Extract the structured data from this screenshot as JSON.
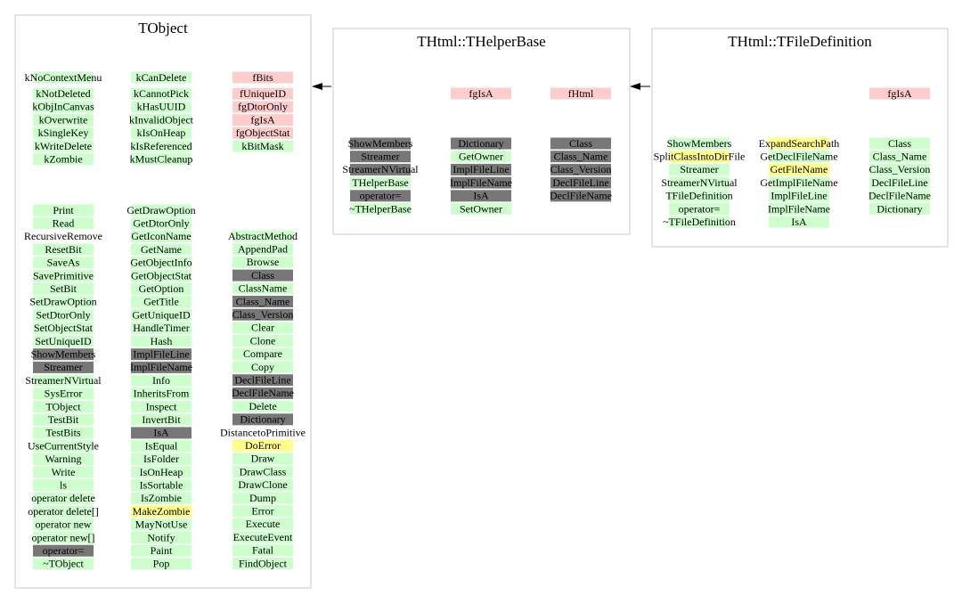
{
  "boxes": [
    {
      "title": "TObject",
      "sections": [
        {
          "columns": [
            [
              {
                "text": "kNoContextMenu",
                "kind": "green"
              },
              {
                "text": "kNotDeleted",
                "kind": "green"
              },
              {
                "text": "kObjInCanvas",
                "kind": "green"
              },
              {
                "text": "kOverwrite",
                "kind": "green"
              },
              {
                "text": "kSingleKey",
                "kind": "green"
              },
              {
                "text": "kWriteDelete",
                "kind": "green"
              },
              {
                "text": "kZombie",
                "kind": "green"
              }
            ],
            [
              {
                "text": "kCanDelete",
                "kind": "green"
              },
              {
                "text": "kCannotPick",
                "kind": "green"
              },
              {
                "text": "kHasUUID",
                "kind": "green"
              },
              {
                "text": "kInvalidObject",
                "kind": "green"
              },
              {
                "text": "kIsOnHeap",
                "kind": "green"
              },
              {
                "text": "kIsReferenced",
                "kind": "green"
              },
              {
                "text": "kMustCleanup",
                "kind": "green"
              }
            ],
            [
              {
                "text": "fBits",
                "kind": "pink"
              },
              {
                "text": "fUniqueID",
                "kind": "pink"
              },
              {
                "text": "fgDtorOnly",
                "kind": "pink"
              },
              {
                "text": "fgIsA",
                "kind": "pink"
              },
              {
                "text": "fgObjectStat",
                "kind": "pink"
              },
              {
                "text": "kBitMask",
                "kind": "green"
              }
            ]
          ]
        },
        {
          "columns": [
            [
              {
                "text": "Print",
                "kind": "green"
              },
              {
                "text": "Read",
                "kind": "green"
              },
              {
                "text": "RecursiveRemove",
                "kind": "none"
              },
              {
                "text": "ResetBit",
                "kind": "green"
              },
              {
                "text": "SaveAs",
                "kind": "green"
              },
              {
                "text": "SavePrimitive",
                "kind": "green"
              },
              {
                "text": "SetBit",
                "kind": "green"
              },
              {
                "text": "SetDrawOption",
                "kind": "green"
              },
              {
                "text": "SetDtorOnly",
                "kind": "green"
              },
              {
                "text": "SetObjectStat",
                "kind": "green"
              },
              {
                "text": "SetUniqueID",
                "kind": "green"
              },
              {
                "text": "ShowMembers",
                "kind": "gray"
              },
              {
                "text": "Streamer",
                "kind": "gray"
              },
              {
                "text": "StreamerNVirtual",
                "kind": "green"
              },
              {
                "text": "SysError",
                "kind": "green"
              },
              {
                "text": "TObject",
                "kind": "green"
              },
              {
                "text": "TestBit",
                "kind": "green"
              },
              {
                "text": "TestBits",
                "kind": "green"
              },
              {
                "text": "UseCurrentStyle",
                "kind": "green"
              },
              {
                "text": "Warning",
                "kind": "green"
              },
              {
                "text": "Write",
                "kind": "green"
              },
              {
                "text": "ls",
                "kind": "green"
              },
              {
                "text": "operator delete",
                "kind": "green"
              },
              {
                "text": "operator delete[]",
                "kind": "green"
              },
              {
                "text": "operator new",
                "kind": "green"
              },
              {
                "text": "operator new[]",
                "kind": "green"
              },
              {
                "text": "operator=",
                "kind": "gray"
              },
              {
                "text": "~TObject",
                "kind": "green"
              }
            ],
            [
              {
                "text": "GetDrawOption",
                "kind": "green"
              },
              {
                "text": "GetDtorOnly",
                "kind": "green"
              },
              {
                "text": "GetIconName",
                "kind": "green"
              },
              {
                "text": "GetName",
                "kind": "green"
              },
              {
                "text": "GetObjectInfo",
                "kind": "green"
              },
              {
                "text": "GetObjectStat",
                "kind": "green"
              },
              {
                "text": "GetOption",
                "kind": "green"
              },
              {
                "text": "GetTitle",
                "kind": "green"
              },
              {
                "text": "GetUniqueID",
                "kind": "green"
              },
              {
                "text": "HandleTimer",
                "kind": "green"
              },
              {
                "text": "Hash",
                "kind": "green"
              },
              {
                "text": "ImplFileLine",
                "kind": "gray"
              },
              {
                "text": "ImplFileName",
                "kind": "gray"
              },
              {
                "text": "Info",
                "kind": "green"
              },
              {
                "text": "InheritsFrom",
                "kind": "green"
              },
              {
                "text": "Inspect",
                "kind": "green"
              },
              {
                "text": "InvertBit",
                "kind": "green"
              },
              {
                "text": "IsA",
                "kind": "gray"
              },
              {
                "text": "IsEqual",
                "kind": "green"
              },
              {
                "text": "IsFolder",
                "kind": "green"
              },
              {
                "text": "IsOnHeap",
                "kind": "green"
              },
              {
                "text": "IsSortable",
                "kind": "green"
              },
              {
                "text": "IsZombie",
                "kind": "green"
              },
              {
                "text": "MakeZombie",
                "kind": "yellow"
              },
              {
                "text": "MayNotUse",
                "kind": "green"
              },
              {
                "text": "Notify",
                "kind": "green"
              },
              {
                "text": "Paint",
                "kind": "green"
              },
              {
                "text": "Pop",
                "kind": "green"
              }
            ],
            [
              {
                "text": "AbstractMethod",
                "kind": "green"
              },
              {
                "text": "AppendPad",
                "kind": "green"
              },
              {
                "text": "Browse",
                "kind": "green"
              },
              {
                "text": "Class",
                "kind": "gray"
              },
              {
                "text": "ClassName",
                "kind": "green"
              },
              {
                "text": "Class_Name",
                "kind": "gray"
              },
              {
                "text": "Class_Version",
                "kind": "gray"
              },
              {
                "text": "Clear",
                "kind": "green"
              },
              {
                "text": "Clone",
                "kind": "green"
              },
              {
                "text": "Compare",
                "kind": "green"
              },
              {
                "text": "Copy",
                "kind": "green"
              },
              {
                "text": "DeclFileLine",
                "kind": "gray"
              },
              {
                "text": "DeclFileName",
                "kind": "gray"
              },
              {
                "text": "Delete",
                "kind": "green"
              },
              {
                "text": "Dictionary",
                "kind": "gray"
              },
              {
                "text": "DistancetoPrimitive",
                "kind": "none"
              },
              {
                "text": "DoError",
                "kind": "yellow"
              },
              {
                "text": "Draw",
                "kind": "green"
              },
              {
                "text": "DrawClass",
                "kind": "green"
              },
              {
                "text": "DrawClone",
                "kind": "green"
              },
              {
                "text": "Dump",
                "kind": "green"
              },
              {
                "text": "Error",
                "kind": "green"
              },
              {
                "text": "Execute",
                "kind": "green"
              },
              {
                "text": "ExecuteEvent",
                "kind": "green"
              },
              {
                "text": "Fatal",
                "kind": "green"
              },
              {
                "text": "FindObject",
                "kind": "green"
              }
            ]
          ]
        }
      ]
    },
    {
      "title": "THtml::THelperBase",
      "sections": [
        {
          "columns": [
            [],
            [
              {
                "text": "fgIsA",
                "kind": "pink"
              }
            ],
            [
              {
                "text": "fHtml",
                "kind": "pink"
              }
            ]
          ]
        },
        {
          "columns": [
            [
              {
                "text": "ShowMembers",
                "kind": "gray"
              },
              {
                "text": "Streamer",
                "kind": "gray"
              },
              {
                "text": "StreamerNVirtual",
                "kind": "gray"
              },
              {
                "text": "THelperBase",
                "kind": "green"
              },
              {
                "text": "operator=",
                "kind": "gray"
              },
              {
                "text": "~THelperBase",
                "kind": "green"
              }
            ],
            [
              {
                "text": "Dictionary",
                "kind": "gray"
              },
              {
                "text": "GetOwner",
                "kind": "green"
              },
              {
                "text": "ImplFileLine",
                "kind": "gray"
              },
              {
                "text": "ImplFileName",
                "kind": "gray"
              },
              {
                "text": "IsA",
                "kind": "gray"
              },
              {
                "text": "SetOwner",
                "kind": "green"
              }
            ],
            [
              {
                "text": "Class",
                "kind": "gray"
              },
              {
                "text": "Class_Name",
                "kind": "gray"
              },
              {
                "text": "Class_Version",
                "kind": "gray"
              },
              {
                "text": "DeclFileLine",
                "kind": "gray"
              },
              {
                "text": "DeclFileName",
                "kind": "gray"
              }
            ]
          ]
        }
      ]
    },
    {
      "title": "THtml::TFileDefinition",
      "sections": [
        {
          "columns": [
            [],
            [],
            [
              {
                "text": "fgIsA",
                "kind": "pink"
              }
            ]
          ]
        },
        {
          "columns": [
            [
              {
                "text": "ShowMembers",
                "kind": "green"
              },
              {
                "text": "SplitClassIntoDirFile",
                "kind": "yellow"
              },
              {
                "text": "Streamer",
                "kind": "green"
              },
              {
                "text": "StreamerNVirtual",
                "kind": "green"
              },
              {
                "text": "TFileDefinition",
                "kind": "green"
              },
              {
                "text": "operator=",
                "kind": "green"
              },
              {
                "text": "~TFileDefinition",
                "kind": "green"
              }
            ],
            [
              {
                "text": "ExpandSearchPath",
                "kind": "yellow"
              },
              {
                "text": "GetDeclFileName",
                "kind": "green"
              },
              {
                "text": "GetFileName",
                "kind": "yellow"
              },
              {
                "text": "GetImplFileName",
                "kind": "green"
              },
              {
                "text": "ImplFileLine",
                "kind": "green"
              },
              {
                "text": "ImplFileName",
                "kind": "green"
              },
              {
                "text": "IsA",
                "kind": "green"
              }
            ],
            [
              {
                "text": "Class",
                "kind": "green"
              },
              {
                "text": "Class_Name",
                "kind": "green"
              },
              {
                "text": "Class_Version",
                "kind": "green"
              },
              {
                "text": "DeclFileLine",
                "kind": "green"
              },
              {
                "text": "DeclFileName",
                "kind": "green"
              },
              {
                "text": "Dictionary",
                "kind": "green"
              }
            ]
          ]
        }
      ]
    }
  ]
}
